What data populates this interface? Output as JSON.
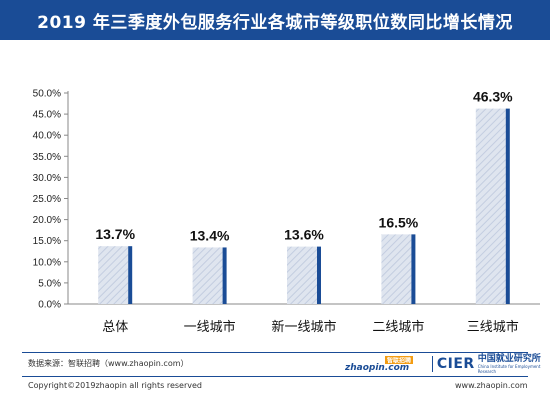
{
  "title": "2019 年三季度外包服务行业各城市等级职位数同比增长情况",
  "chart_data": {
    "type": "bar",
    "categories": [
      "总体",
      "一线城市",
      "新一线城市",
      "二线城市",
      "三线城市"
    ],
    "values": [
      13.7,
      13.4,
      13.6,
      16.5,
      46.3
    ],
    "value_labels": [
      "13.7%",
      "13.4%",
      "13.6%",
      "16.5%",
      "46.3%"
    ],
    "y_ticks": [
      "0.0%",
      "5.0%",
      "10.0%",
      "15.0%",
      "20.0%",
      "25.0%",
      "30.0%",
      "35.0%",
      "40.0%",
      "45.0%",
      "50.0%"
    ],
    "ylim": [
      0,
      50
    ],
    "grid": false,
    "colors": {
      "bar_fill": "#dfe5ef",
      "bar_hatch": "#c3cde0",
      "bar_edge": "#1a4c96",
      "axis": "#888888"
    }
  },
  "footer": {
    "source": "数据来源：智联招聘（www.zhaopin.com）",
    "copyright": "Copyright©2019zhaopin all rights reserved",
    "website": "www.zhaopin.com",
    "logo_zhaopin": "zhaopin.com",
    "logo_zhaopin_cn": "智联招聘",
    "logo_cier": "CIER",
    "logo_cier_cn": "中国就业研究所",
    "logo_cier_en": "China Institute for Employment Research"
  }
}
